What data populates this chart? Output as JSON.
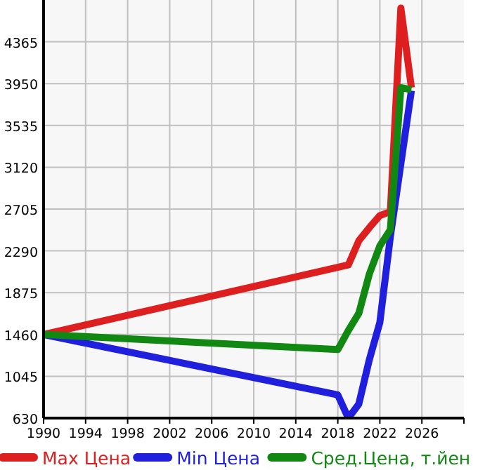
{
  "chart_data": {
    "type": "line",
    "x": [
      1990,
      2018,
      2019,
      2020,
      2021,
      2022,
      2023,
      2024,
      2025
    ],
    "xlim": [
      1990,
      2030
    ],
    "xticks": [
      1990,
      1994,
      1998,
      2002,
      2006,
      2010,
      2014,
      2018,
      2022,
      2026
    ],
    "ylim": [
      630,
      4780
    ],
    "yticks": [
      630,
      1045,
      1460,
      1875,
      2290,
      2705,
      3120,
      3535,
      3950,
      4365
    ],
    "grid": true,
    "legend": "bottom",
    "marker": "none",
    "line_style": "solid",
    "series": [
      {
        "name": "Max Цена",
        "color": "#dd1f1f",
        "x": [
          1990,
          2019,
          2020,
          2021,
          2022,
          2023,
          2024,
          2025
        ],
        "values": [
          1460,
          2150,
          2390,
          2520,
          2640,
          2680,
          4700,
          3910
        ]
      },
      {
        "name": "Min Цена",
        "color": "#1f1fdd",
        "x": [
          1990,
          2018,
          2019,
          2020,
          2021,
          2022,
          2023,
          2025
        ],
        "values": [
          1460,
          860,
          630,
          770,
          1210,
          1580,
          2430,
          3880
        ]
      },
      {
        "name": "Сред.Цена, т.йен",
        "color": "#118811",
        "values": [
          1460,
          1310,
          1500,
          1670,
          2060,
          2340,
          2500,
          3910,
          3890
        ]
      }
    ]
  }
}
